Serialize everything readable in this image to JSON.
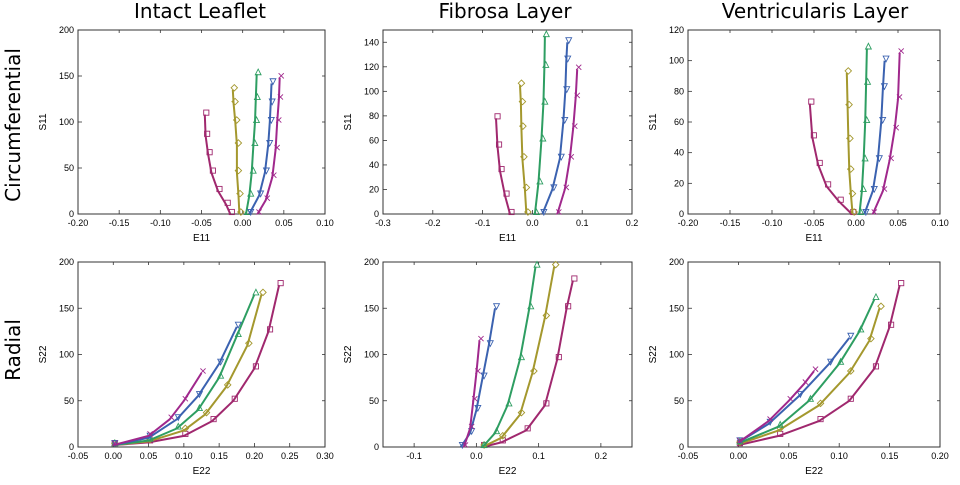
{
  "column_titles": [
    "Intact Leaflet",
    "Fibrosa Layer",
    "Ventricularis Layer"
  ],
  "row_titles": [
    "Circumferential",
    "Radial"
  ],
  "palette": [
    "#a0286e",
    "#a4982e",
    "#2e9e62",
    "#3b62b0",
    "#a0288c"
  ],
  "marker_shapes": [
    "square",
    "diamond",
    "triangle-up",
    "triangle-down",
    "x"
  ],
  "chart_data": [
    {
      "type": "scatter",
      "panel": "intact-circumferential",
      "xlabel": "E11",
      "ylabel": "S11",
      "xlim": [
        -0.2,
        0.1
      ],
      "ylim": [
        0,
        200
      ],
      "xticks": [
        "-0.20",
        "-0.15",
        "-0.10",
        "-0.05",
        "0.00",
        "0.05",
        "0.10"
      ],
      "xtick_values": [
        -0.2,
        -0.15,
        -0.1,
        -0.05,
        0,
        0.05,
        0.1
      ],
      "yticks": [
        "0",
        "50",
        "100",
        "150",
        "200"
      ],
      "ytick_values": [
        0,
        50,
        100,
        150,
        200
      ],
      "series": [
        {
          "values": [
            [
              -0.015,
              0
            ],
            [
              -0.02,
              10
            ],
            [
              -0.03,
              25
            ],
            [
              -0.038,
              45
            ],
            [
              -0.042,
              65
            ],
            [
              -0.045,
              85
            ],
            [
              -0.046,
              108
            ]
          ]
        },
        {
          "values": [
            [
              -0.004,
              0
            ],
            [
              -0.005,
              20
            ],
            [
              -0.007,
              45
            ],
            [
              -0.007,
              75
            ],
            [
              -0.009,
              100
            ],
            [
              -0.011,
              120
            ],
            [
              -0.012,
              135
            ]
          ]
        },
        {
          "values": [
            [
              0.004,
              0
            ],
            [
              0.008,
              20
            ],
            [
              0.011,
              45
            ],
            [
              0.013,
              75
            ],
            [
              0.015,
              100
            ],
            [
              0.016,
              125
            ],
            [
              0.017,
              152
            ]
          ]
        },
        {
          "values": [
            [
              0.008,
              0
            ],
            [
              0.02,
              20
            ],
            [
              0.027,
              45
            ],
            [
              0.031,
              75
            ],
            [
              0.033,
              100
            ],
            [
              0.034,
              120
            ],
            [
              0.035,
              142
            ]
          ]
        },
        {
          "values": [
            [
              0.018,
              0
            ],
            [
              0.028,
              15
            ],
            [
              0.036,
              40
            ],
            [
              0.04,
              70
            ],
            [
              0.042,
              100
            ],
            [
              0.044,
              125
            ],
            [
              0.045,
              148
            ]
          ]
        }
      ]
    },
    {
      "type": "scatter",
      "panel": "fibrosa-circumferential",
      "xlabel": "E11",
      "ylabel": "S11",
      "xlim": [
        -0.3,
        0.2
      ],
      "ylim": [
        0,
        150
      ],
      "xticks": [
        "-0.3",
        "-0.2",
        "-0.1",
        "0.0",
        "0.1",
        "0.2"
      ],
      "xtick_values": [
        -0.3,
        -0.2,
        -0.1,
        0,
        0.1,
        0.2
      ],
      "yticks": [
        "0",
        "20",
        "40",
        "60",
        "80",
        "100",
        "120",
        "140"
      ],
      "ytick_values": [
        0,
        20,
        40,
        60,
        80,
        100,
        120,
        140
      ],
      "series": [
        {
          "values": [
            [
              -0.045,
              0
            ],
            [
              -0.055,
              15
            ],
            [
              -0.065,
              35
            ],
            [
              -0.07,
              55
            ],
            [
              -0.073,
              78
            ]
          ]
        },
        {
          "values": [
            [
              -0.012,
              0
            ],
            [
              -0.015,
              20
            ],
            [
              -0.02,
              45
            ],
            [
              -0.022,
              70
            ],
            [
              -0.023,
              90
            ],
            [
              -0.025,
              105
            ]
          ]
        },
        {
          "values": [
            [
              0.005,
              0
            ],
            [
              0.012,
              25
            ],
            [
              0.018,
              60
            ],
            [
              0.022,
              90
            ],
            [
              0.024,
              120
            ],
            [
              0.025,
              145
            ]
          ]
        },
        {
          "values": [
            [
              0.02,
              0
            ],
            [
              0.04,
              20
            ],
            [
              0.055,
              45
            ],
            [
              0.062,
              75
            ],
            [
              0.066,
              100
            ],
            [
              0.068,
              125
            ],
            [
              0.07,
              140
            ]
          ]
        },
        {
          "values": [
            [
              0.05,
              0
            ],
            [
              0.065,
              20
            ],
            [
              0.075,
              45
            ],
            [
              0.082,
              70
            ],
            [
              0.087,
              95
            ],
            [
              0.09,
              118
            ]
          ]
        }
      ]
    },
    {
      "type": "scatter",
      "panel": "ventricularis-circumferential",
      "xlabel": "E11",
      "ylabel": "S11",
      "xlim": [
        -0.2,
        0.1
      ],
      "ylim": [
        0,
        120
      ],
      "xticks": [
        "-0.20",
        "-0.15",
        "-0.10",
        "-0.05",
        "0.00",
        "0.05",
        "0.10"
      ],
      "xtick_values": [
        -0.2,
        -0.15,
        -0.1,
        -0.05,
        0,
        0.05,
        0.1
      ],
      "yticks": [
        "0",
        "20",
        "40",
        "60",
        "80",
        "100",
        "120"
      ],
      "ytick_values": [
        0,
        20,
        40,
        60,
        80,
        100,
        120
      ],
      "series": [
        {
          "values": [
            [
              -0.005,
              0
            ],
            [
              -0.02,
              8
            ],
            [
              -0.035,
              18
            ],
            [
              -0.045,
              32
            ],
            [
              -0.052,
              50
            ],
            [
              -0.055,
              72
            ]
          ]
        },
        {
          "values": [
            [
              -0.004,
              0
            ],
            [
              -0.006,
              12
            ],
            [
              -0.008,
              28
            ],
            [
              -0.009,
              48
            ],
            [
              -0.01,
              70
            ],
            [
              -0.011,
              92
            ]
          ]
        },
        {
          "values": [
            [
              0.004,
              0
            ],
            [
              0.007,
              15
            ],
            [
              0.009,
              35
            ],
            [
              0.011,
              60
            ],
            [
              0.012,
              85
            ],
            [
              0.013,
              108
            ]
          ]
        },
        {
          "values": [
            [
              0.01,
              0
            ],
            [
              0.02,
              15
            ],
            [
              0.026,
              35
            ],
            [
              0.03,
              60
            ],
            [
              0.032,
              82
            ],
            [
              0.034,
              100
            ]
          ]
        },
        {
          "values": [
            [
              0.02,
              0
            ],
            [
              0.032,
              15
            ],
            [
              0.04,
              35
            ],
            [
              0.046,
              55
            ],
            [
              0.05,
              75
            ],
            [
              0.052,
              105
            ]
          ]
        }
      ]
    },
    {
      "type": "scatter",
      "panel": "intact-radial",
      "xlabel": "E22",
      "ylabel": "S22",
      "xlim": [
        -0.05,
        0.3
      ],
      "ylim": [
        0,
        200
      ],
      "xticks": [
        "-0.05",
        "0.00",
        "0.05",
        "0.10",
        "0.15",
        "0.20",
        "0.25",
        "0.30"
      ],
      "xtick_values": [
        -0.05,
        0,
        0.05,
        0.1,
        0.15,
        0.2,
        0.25,
        0.3
      ],
      "yticks": [
        "0",
        "50",
        "100",
        "150",
        "200"
      ],
      "ytick_values": [
        0,
        50,
        100,
        150,
        200
      ],
      "series": [
        {
          "values": [
            [
              0.0,
              2
            ],
            [
              0.05,
              5
            ],
            [
              0.1,
              12
            ],
            [
              0.14,
              28
            ],
            [
              0.17,
              50
            ],
            [
              0.2,
              85
            ],
            [
              0.22,
              125
            ],
            [
              0.235,
              175
            ]
          ]
        },
        {
          "values": [
            [
              0.0,
              2
            ],
            [
              0.05,
              6
            ],
            [
              0.1,
              18
            ],
            [
              0.13,
              35
            ],
            [
              0.16,
              65
            ],
            [
              0.19,
              110
            ],
            [
              0.21,
              165
            ]
          ]
        },
        {
          "values": [
            [
              0.0,
              2
            ],
            [
              0.05,
              7
            ],
            [
              0.09,
              20
            ],
            [
              0.12,
              40
            ],
            [
              0.15,
              75
            ],
            [
              0.175,
              120
            ],
            [
              0.2,
              165
            ]
          ]
        },
        {
          "values": [
            [
              0.0,
              2
            ],
            [
              0.05,
              10
            ],
            [
              0.09,
              30
            ],
            [
              0.12,
              55
            ],
            [
              0.15,
              90
            ],
            [
              0.175,
              130
            ]
          ]
        },
        {
          "values": [
            [
              0.0,
              2
            ],
            [
              0.05,
              12
            ],
            [
              0.08,
              30
            ],
            [
              0.1,
              50
            ],
            [
              0.125,
              80
            ]
          ]
        }
      ]
    },
    {
      "type": "scatter",
      "panel": "fibrosa-radial",
      "xlabel": "E22",
      "ylabel": "S22",
      "xlim": [
        -0.15,
        0.25
      ],
      "ylim": [
        0,
        200
      ],
      "xticks": [
        "-0.1",
        "0.0",
        "0.1",
        "0.2"
      ],
      "xtick_values": [
        -0.1,
        0,
        0.1,
        0.2
      ],
      "yticks": [
        "0",
        "50",
        "100",
        "150",
        "200"
      ],
      "ytick_values": [
        0,
        50,
        100,
        150,
        200
      ],
      "series": [
        {
          "values": [
            [
              0.01,
              0
            ],
            [
              0.04,
              5
            ],
            [
              0.08,
              18
            ],
            [
              0.11,
              45
            ],
            [
              0.13,
              95
            ],
            [
              0.145,
              150
            ],
            [
              0.155,
              180
            ]
          ]
        },
        {
          "values": [
            [
              0.01,
              0
            ],
            [
              0.04,
              10
            ],
            [
              0.07,
              35
            ],
            [
              0.09,
              80
            ],
            [
              0.11,
              140
            ],
            [
              0.125,
              195
            ]
          ]
        },
        {
          "values": [
            [
              0.01,
              0
            ],
            [
              0.03,
              15
            ],
            [
              0.05,
              45
            ],
            [
              0.07,
              95
            ],
            [
              0.085,
              150
            ],
            [
              0.095,
              195
            ]
          ]
        },
        {
          "values": [
            [
              -0.025,
              0
            ],
            [
              -0.01,
              15
            ],
            [
              0.0,
              40
            ],
            [
              0.01,
              75
            ],
            [
              0.02,
              110
            ],
            [
              0.03,
              150
            ]
          ]
        },
        {
          "values": [
            [
              -0.02,
              0
            ],
            [
              -0.01,
              20
            ],
            [
              -0.005,
              50
            ],
            [
              0.0,
              80
            ],
            [
              0.005,
              115
            ]
          ]
        }
      ]
    },
    {
      "type": "scatter",
      "panel": "ventricularis-radial",
      "xlabel": "E22",
      "ylabel": "S22",
      "xlim": [
        -0.05,
        0.2
      ],
      "ylim": [
        0,
        200
      ],
      "xticks": [
        "-0.05",
        "0.00",
        "0.05",
        "0.10",
        "0.15",
        "0.20"
      ],
      "xtick_values": [
        -0.05,
        0,
        0.05,
        0.1,
        0.15,
        0.2
      ],
      "yticks": [
        "0",
        "50",
        "100",
        "150",
        "200"
      ],
      "ytick_values": [
        0,
        50,
        100,
        150,
        200
      ],
      "series": [
        {
          "values": [
            [
              0.0,
              2
            ],
            [
              0.04,
              12
            ],
            [
              0.08,
              28
            ],
            [
              0.11,
              50
            ],
            [
              0.135,
              85
            ],
            [
              0.15,
              130
            ],
            [
              0.16,
              175
            ]
          ]
        },
        {
          "values": [
            [
              0.0,
              3
            ],
            [
              0.04,
              18
            ],
            [
              0.08,
              45
            ],
            [
              0.11,
              80
            ],
            [
              0.13,
              115
            ],
            [
              0.14,
              150
            ]
          ]
        },
        {
          "values": [
            [
              0.0,
              4
            ],
            [
              0.04,
              22
            ],
            [
              0.07,
              50
            ],
            [
              0.1,
              90
            ],
            [
              0.12,
              125
            ],
            [
              0.135,
              160
            ]
          ]
        },
        {
          "values": [
            [
              0.0,
              5
            ],
            [
              0.03,
              25
            ],
            [
              0.06,
              55
            ],
            [
              0.09,
              90
            ],
            [
              0.11,
              118
            ]
          ]
        },
        {
          "values": [
            [
              0.0,
              5
            ],
            [
              0.03,
              28
            ],
            [
              0.05,
              50
            ],
            [
              0.065,
              68
            ],
            [
              0.075,
              82
            ]
          ]
        }
      ]
    }
  ]
}
